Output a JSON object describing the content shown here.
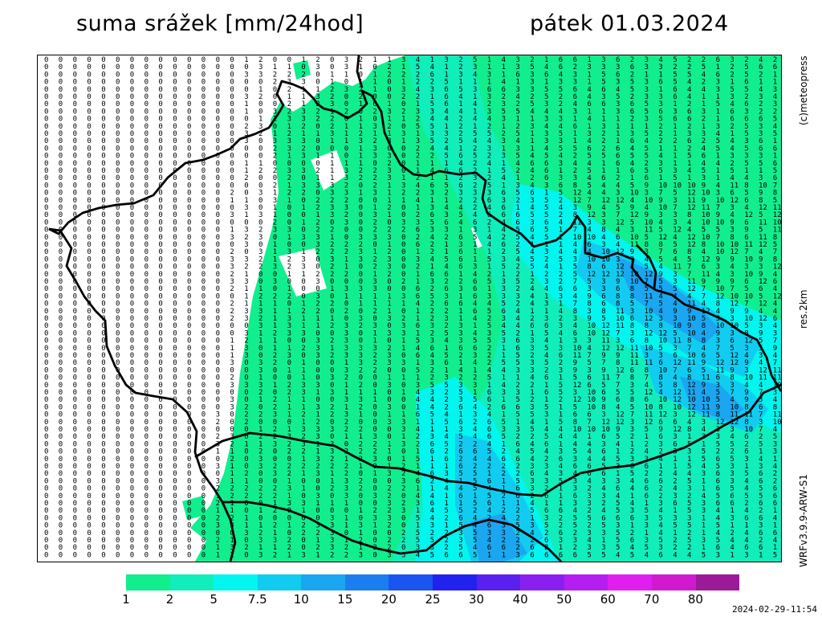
{
  "header": {
    "title": "suma srážek [mm/24hod]",
    "date": "pátek 01.03.2024"
  },
  "side_labels": {
    "credit": "(c)meteopress",
    "resolution": "res.2km",
    "model": "WRFv3.9.9-ARW-S1"
  },
  "legend": {
    "labels": [
      "1",
      "2",
      "5",
      "7.5",
      "10",
      "15",
      "20",
      "25",
      "30",
      "40",
      "50",
      "60",
      "70",
      "80"
    ],
    "colors": [
      "#11ee8e",
      "#10eebb",
      "#00f6ee",
      "#11ccf0",
      "#1aa6f0",
      "#1a7ef0",
      "#1a55f0",
      "#2222f0",
      "#5a20f0",
      "#8a20f0",
      "#b41ef0",
      "#e01ef0",
      "#d11ad0",
      "#9a1a9a"
    ]
  },
  "timestamp": "2024-02-29-11:54",
  "icons": {
    "border": "country-border-line"
  }
}
